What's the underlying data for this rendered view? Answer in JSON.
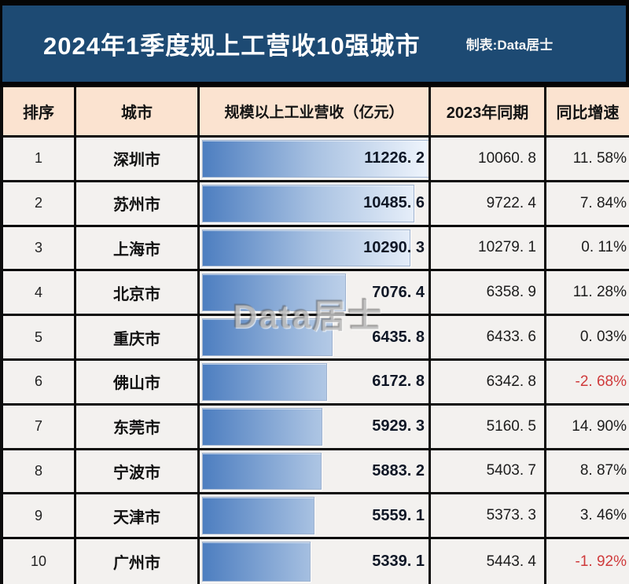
{
  "header": {
    "title": "2024年1季度规上工营收10强城市",
    "credit": "制表:Data居士"
  },
  "columns": [
    "排序",
    "城市",
    "规模以上工业营收（亿元）",
    "2023年同期",
    "同比增速"
  ],
  "watermark": {
    "text": "Data居士"
  },
  "colors": {
    "banner_bg": "#1d4a73",
    "header_row_bg": "#fbe3d0",
    "row_bg": "#f3f1ef",
    "border": "#0c0c0c",
    "bar_gradient_start": "#4d7ec0",
    "bar_gradient_end": "#eef4fc",
    "negative_value": "#cf3a3b",
    "value_text": "#0f1726"
  },
  "rows": [
    {
      "rank": "1",
      "city": "深圳市",
      "revenue": "11226. 2",
      "prev": "10060. 8",
      "growth": "11. 58%"
    },
    {
      "rank": "2",
      "city": "苏州市",
      "revenue": "10485. 6",
      "prev": "9722. 4",
      "growth": "7. 84%"
    },
    {
      "rank": "3",
      "city": "上海市",
      "revenue": "10290. 3",
      "prev": "10279. 1",
      "growth": "0. 11%"
    },
    {
      "rank": "4",
      "city": "北京市",
      "revenue": "7076. 4",
      "prev": "6358. 9",
      "growth": "11. 28%"
    },
    {
      "rank": "5",
      "city": "重庆市",
      "revenue": "6435. 8",
      "prev": "6433. 6",
      "growth": "0. 03%"
    },
    {
      "rank": "6",
      "city": "佛山市",
      "revenue": "6172. 8",
      "prev": "6342. 8",
      "growth": "-2. 68%"
    },
    {
      "rank": "7",
      "city": "东莞市",
      "revenue": "5929. 3",
      "prev": "5160. 5",
      "growth": "14. 90%"
    },
    {
      "rank": "8",
      "city": "宁波市",
      "revenue": "5883. 2",
      "prev": "5403. 7",
      "growth": "8. 87%"
    },
    {
      "rank": "9",
      "city": "天津市",
      "revenue": "5559. 1",
      "prev": "5373. 3",
      "growth": "3. 46%"
    },
    {
      "rank": "10",
      "city": "广州市",
      "revenue": "5339. 1",
      "prev": "5443. 4",
      "growth": "-1. 92%"
    }
  ],
  "chart_data": {
    "type": "bar",
    "orientation": "horizontal",
    "title": "2024年1季度规上工营收10强城市",
    "credit": "制表:Data居士",
    "categories": [
      "深圳市",
      "苏州市",
      "上海市",
      "北京市",
      "重庆市",
      "佛山市",
      "东莞市",
      "宁波市",
      "天津市",
      "广州市"
    ],
    "ranks": [
      1,
      2,
      3,
      4,
      5,
      6,
      7,
      8,
      9,
      10
    ],
    "series": [
      {
        "name": "规模以上工业营收（亿元）",
        "values": [
          11226.2,
          10485.6,
          10290.3,
          7076.4,
          6435.8,
          6172.8,
          5929.3,
          5883.2,
          5559.1,
          5339.1
        ]
      },
      {
        "name": "2023年同期",
        "values": [
          10060.8,
          9722.4,
          10279.1,
          6358.9,
          6433.6,
          6342.8,
          5160.5,
          5403.7,
          5373.3,
          5443.4
        ]
      },
      {
        "name": "同比增速(%)",
        "values": [
          11.58,
          7.84,
          0.11,
          11.28,
          0.03,
          -2.68,
          14.9,
          8.87,
          3.46,
          -1.92
        ]
      }
    ],
    "xlim": [
      0,
      11226.2
    ],
    "bar_style": "gradient-data-bar",
    "grid": false,
    "legend_position": "none"
  }
}
